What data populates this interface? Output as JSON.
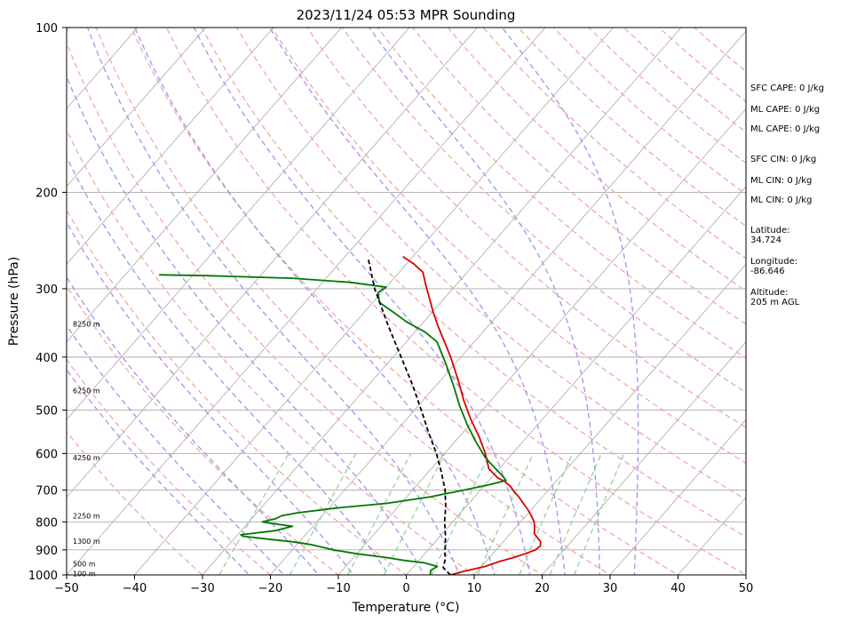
{
  "chart_data": {
    "type": "line",
    "subtype": "skew-t log-p sounding",
    "title": "2023/11/24 05:53 MPR Sounding",
    "xlabel": "Temperature (°C)",
    "ylabel": "Pressure (hPa)",
    "xlim": [
      -50,
      50
    ],
    "ylim": [
      1000,
      100
    ],
    "yscale": "log",
    "grid": true,
    "x_ticks": [
      -50,
      -40,
      -30,
      -20,
      -10,
      0,
      10,
      20,
      30,
      40,
      50
    ],
    "y_ticks": [
      1000,
      900,
      800,
      700,
      600,
      500,
      400,
      300,
      200,
      100
    ],
    "series": [
      {
        "role": "temperature",
        "color": "#dd0000",
        "points": [
          [
            1000,
            6.5
          ],
          [
            985,
            8.0
          ],
          [
            965,
            10.5
          ],
          [
            945,
            12.0
          ],
          [
            930,
            13.5
          ],
          [
            915,
            14.8
          ],
          [
            900,
            15.8
          ],
          [
            885,
            16.0
          ],
          [
            870,
            15.5
          ],
          [
            855,
            14.5
          ],
          [
            840,
            13.5
          ],
          [
            820,
            12.8
          ],
          [
            800,
            12.0
          ],
          [
            780,
            10.8
          ],
          [
            760,
            9.5
          ],
          [
            740,
            8.0
          ],
          [
            720,
            6.5
          ],
          [
            705,
            5.2
          ],
          [
            690,
            4.0
          ],
          [
            675,
            2.5
          ],
          [
            665,
            1.0
          ],
          [
            640,
            -1.5
          ],
          [
            600,
            -4.0
          ],
          [
            560,
            -7.0
          ],
          [
            520,
            -10.5
          ],
          [
            480,
            -14.0
          ],
          [
            440,
            -17.5
          ],
          [
            400,
            -21.5
          ],
          [
            370,
            -25.0
          ],
          [
            350,
            -27.5
          ],
          [
            330,
            -30.0
          ],
          [
            310,
            -32.5
          ],
          [
            295,
            -34.5
          ],
          [
            280,
            -36.5
          ],
          [
            270,
            -39.0
          ],
          [
            262,
            -41.5
          ]
        ]
      },
      {
        "role": "dewpoint",
        "color": "#007700",
        "points": [
          [
            1000,
            3.5
          ],
          [
            980,
            3.0
          ],
          [
            965,
            3.5
          ],
          [
            950,
            1.0
          ],
          [
            940,
            -2.5
          ],
          [
            930,
            -5.0
          ],
          [
            915,
            -10.0
          ],
          [
            900,
            -14.0
          ],
          [
            880,
            -18.0
          ],
          [
            870,
            -21.0
          ],
          [
            860,
            -25.0
          ],
          [
            850,
            -29.0
          ],
          [
            845,
            -29.5
          ],
          [
            830,
            -25.0
          ],
          [
            815,
            -23.0
          ],
          [
            805,
            -26.5
          ],
          [
            800,
            -28.0
          ],
          [
            790,
            -26.5
          ],
          [
            780,
            -26.0
          ],
          [
            770,
            -24.0
          ],
          [
            755,
            -19.0
          ],
          [
            740,
            -12.0
          ],
          [
            720,
            -6.5
          ],
          [
            700,
            -2.5
          ],
          [
            685,
            0.5
          ],
          [
            672,
            2.5
          ],
          [
            660,
            1.5
          ],
          [
            640,
            -0.5
          ],
          [
            610,
            -3.5
          ],
          [
            570,
            -7.0
          ],
          [
            530,
            -10.5
          ],
          [
            490,
            -14.0
          ],
          [
            450,
            -17.5
          ],
          [
            410,
            -21.5
          ],
          [
            375,
            -25.5
          ],
          [
            360,
            -28.5
          ],
          [
            345,
            -32.5
          ],
          [
            330,
            -36.0
          ],
          [
            318,
            -39.0
          ],
          [
            305,
            -40.5
          ],
          [
            298,
            -40.0
          ],
          [
            292,
            -46.0
          ],
          [
            287,
            -55.0
          ],
          [
            284,
            -68.0
          ],
          [
            283,
            -75.0
          ]
        ]
      },
      {
        "role": "parcel",
        "color": "#000000",
        "points": [
          [
            1000,
            6.5
          ],
          [
            970,
            4.5
          ],
          [
            940,
            3.8
          ],
          [
            900,
            2.5
          ],
          [
            850,
            0.8
          ],
          [
            800,
            -1.2
          ],
          [
            750,
            -3.0
          ],
          [
            700,
            -5.2
          ],
          [
            650,
            -8.0
          ],
          [
            600,
            -11.2
          ],
          [
            550,
            -15.0
          ],
          [
            500,
            -19.0
          ],
          [
            450,
            -23.5
          ],
          [
            400,
            -28.8
          ],
          [
            350,
            -34.8
          ],
          [
            300,
            -41.5
          ],
          [
            263,
            -46.5
          ]
        ]
      }
    ],
    "isotherms_temps": [
      -120,
      -110,
      -100,
      -90,
      -80,
      -70,
      -60,
      -50,
      -40,
      -30,
      -20,
      -10,
      0,
      10,
      20,
      30,
      40,
      50
    ],
    "dry_adiabats_theta_c": [
      -30,
      -20,
      -10,
      0,
      10,
      20,
      30,
      40,
      50,
      60,
      70,
      80,
      90,
      100,
      110,
      120,
      130,
      140,
      150,
      160,
      170,
      180,
      190,
      200
    ],
    "moist_adiabats_start_c": [
      -20,
      -15,
      -10,
      -5,
      0,
      5,
      10,
      15,
      20,
      25,
      30,
      35
    ],
    "mixing_ratios_gkg": [
      0.4,
      1,
      2,
      3,
      5,
      8,
      12,
      16,
      20
    ],
    "height_labels": [
      {
        "pressure": 995,
        "label": "100 m"
      },
      {
        "pressure": 955,
        "label": "500 m"
      },
      {
        "pressure": 868,
        "label": "1300 m"
      },
      {
        "pressure": 780,
        "label": "2250 m"
      },
      {
        "pressure": 610,
        "label": "4250 m"
      },
      {
        "pressure": 460,
        "label": "6250 m"
      },
      {
        "pressure": 348,
        "label": "8250 m"
      }
    ]
  },
  "info_panel": [
    {
      "label": "SFC CAPE: 0 J/kg"
    },
    {
      "label": "ML CAPE: 0 J/kg"
    },
    {
      "label": "ML CAPE: 0 J/kg"
    },
    {
      "label": "SFC CIN: 0 J/kg"
    },
    {
      "label": "ML CIN: 0 J/kg"
    },
    {
      "label": "ML CIN: 0 J/kg"
    },
    {
      "label": "Latitude:",
      "value": "34.724"
    },
    {
      "label": "Longitude:",
      "value": "-86.646"
    },
    {
      "label": "Altitude:",
      "value": "205 m AGL"
    }
  ],
  "colors": {
    "isotherm": "#aaaaaa",
    "isobar": "#aaaaaa",
    "dry_adiabat": "#f4a6a6",
    "moist_adiabat": "#9d95ee",
    "mixing_ratio": "#8fcf8f"
  }
}
